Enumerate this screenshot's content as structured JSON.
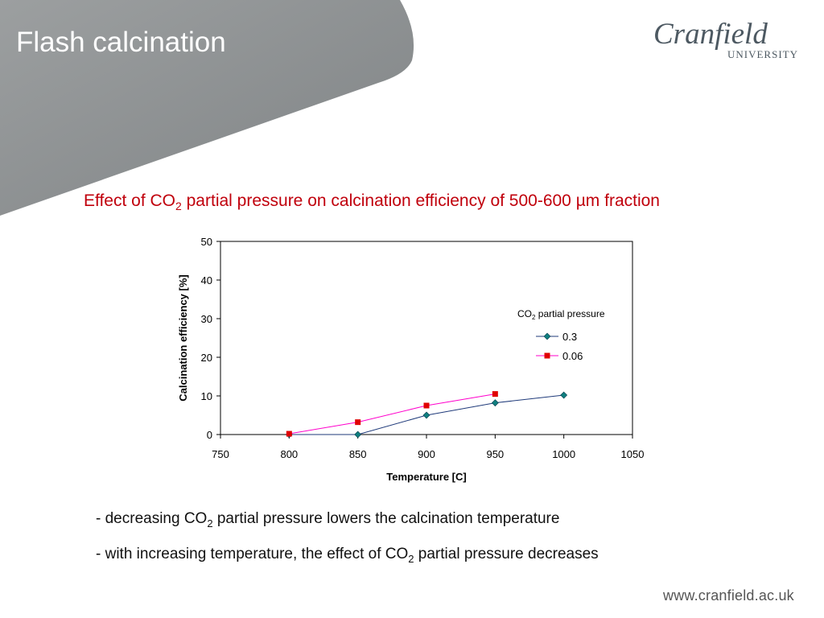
{
  "slide": {
    "title": "Flash calcination",
    "logo": {
      "name": "Cranfield",
      "sub": "UNIVERSITY"
    },
    "footer_url": "www.cranfield.ac.uk",
    "bullets": [
      {
        "pre": "- decreasing CO",
        "sub": "2",
        "post": " partial pressure lowers the calcination temperature"
      },
      {
        "pre": "- with increasing temperature, the effect of CO",
        "sub": "2",
        "post": " partial pressure decreases"
      }
    ]
  },
  "chart_heading": {
    "pre": "Effect of CO",
    "sub": "2",
    "post": " partial pressure on calcination efficiency of 500-600 µm fraction"
  },
  "colors": {
    "title_red": "#c0000c",
    "series_03": "#1f3a7a",
    "series_006": "#ff00cc",
    "marker_03": "#0f7f7f",
    "marker_006": "#e00000",
    "header_grey": "#8e9294"
  },
  "chart_data": {
    "type": "scatter",
    "xlabel": "Temperature [C]",
    "ylabel": "Calcination efficiency [%]",
    "xlim": [
      750,
      1050
    ],
    "ylim": [
      0,
      50
    ],
    "xticks": [
      750,
      800,
      850,
      900,
      950,
      1000,
      1050
    ],
    "yticks": [
      0,
      10,
      20,
      30,
      40,
      50
    ],
    "grid": false,
    "legend": {
      "title_pre": "CO",
      "title_sub": "2",
      "title_post": " partial pressure",
      "placement": "right"
    },
    "series": [
      {
        "name": "0.3",
        "marker": "diamond",
        "x": [
          800,
          850,
          900,
          950,
          1000
        ],
        "y": [
          0,
          0,
          5,
          8.2,
          10.2
        ]
      },
      {
        "name": "0.06",
        "marker": "square",
        "x": [
          800,
          850,
          900,
          950
        ],
        "y": [
          0.2,
          3.2,
          7.5,
          10.5
        ]
      }
    ]
  }
}
